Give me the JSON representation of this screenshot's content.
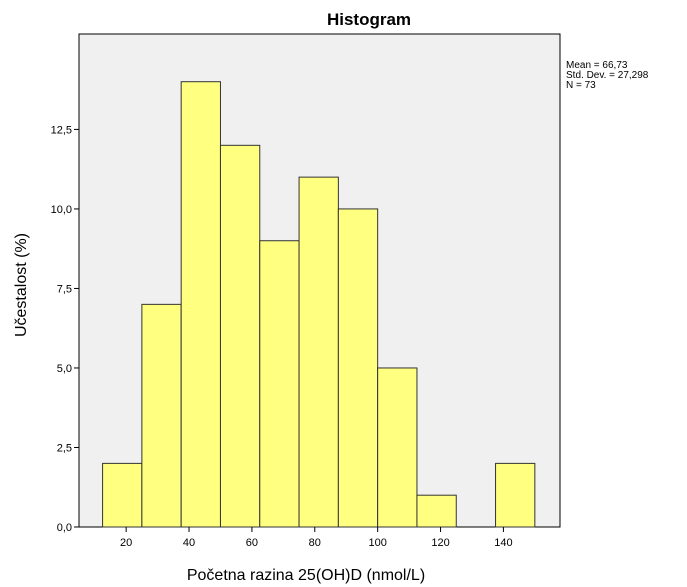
{
  "chart_data": {
    "type": "bar",
    "title": "Histogram",
    "xlabel": "Početna razina 25(OH)D (nmol/L)",
    "ylabel": "Učestalost (%)",
    "bin_edges": [
      12.5,
      25,
      37.5,
      50,
      62.5,
      75,
      87.5,
      100,
      112.5,
      125,
      137.5,
      150
    ],
    "values": [
      2,
      7,
      14,
      12,
      9,
      11,
      10,
      5,
      1,
      0,
      2
    ],
    "xlim": [
      5,
      158
    ],
    "ylim": [
      0,
      15.5
    ],
    "x_ticks": [
      20,
      40,
      60,
      80,
      100,
      120,
      140
    ],
    "y_ticks": [
      0,
      2.5,
      5,
      7.5,
      10,
      12.5
    ],
    "y_tick_labels": [
      "0,0",
      "2,5",
      "5,0",
      "7,5",
      "10,0",
      "12,5"
    ],
    "stats": [
      "Mean = 66,73",
      "Std. Dev. = 27,298",
      "N = 73"
    ],
    "colors": {
      "bar_fill": "#ffff80",
      "bar_stroke": "#333333",
      "plot_bg": "#f0f0f0"
    },
    "grid": false,
    "legend": "none"
  }
}
